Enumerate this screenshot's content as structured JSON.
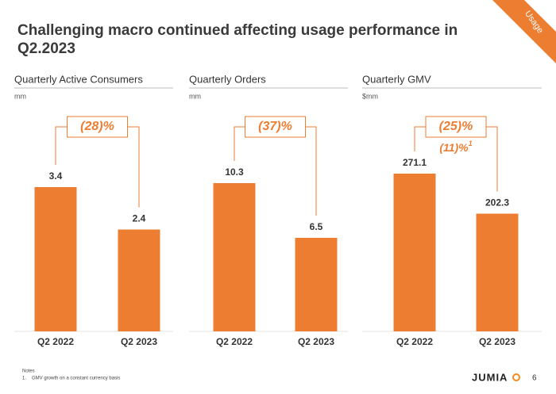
{
  "title": [
    "Challenging macro continued affecting usage performance in",
    "Q2.2023"
  ],
  "corner_tag": "Usage",
  "notes": {
    "heading": "Notes",
    "items": [
      {
        "number": "1.",
        "text": "GMV growth on a constant currency basis"
      }
    ]
  },
  "logo": "JUMIA",
  "page_number": "6",
  "chart_data": [
    {
      "type": "bar",
      "title": "Quarterly Active Consumers",
      "unit": "mm",
      "categories": [
        "Q2 2022",
        "Q2 2023"
      ],
      "values": [
        3.4,
        2.4
      ],
      "color": "#ED7D31",
      "change": "(28)%"
    },
    {
      "type": "bar",
      "title": "Quarterly Orders",
      "unit": "mm",
      "categories": [
        "Q2 2022",
        "Q2 2023"
      ],
      "values": [
        10.3,
        6.5
      ],
      "color": "#ED7D31",
      "change": "(37)%"
    },
    {
      "type": "bar",
      "title": "Quarterly GMV",
      "unit": "$mm",
      "categories": [
        "Q2 2022",
        "Q2 2023"
      ],
      "values": [
        271.1,
        202.3
      ],
      "color": "#ED7D31",
      "change": "(25)%",
      "change_cc": "(11)%",
      "change_cc_note": "1"
    }
  ]
}
